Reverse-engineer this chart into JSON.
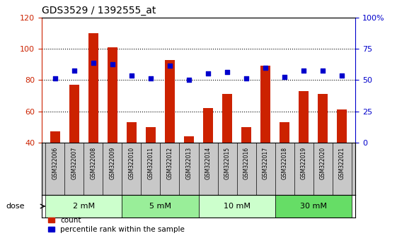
{
  "title": "GDS3529 / 1392555_at",
  "samples": [
    "GSM322006",
    "GSM322007",
    "GSM322008",
    "GSM322009",
    "GSM322010",
    "GSM322011",
    "GSM322012",
    "GSM322013",
    "GSM322014",
    "GSM322015",
    "GSM322016",
    "GSM322017",
    "GSM322018",
    "GSM322019",
    "GSM322020",
    "GSM322021"
  ],
  "counts": [
    47,
    77,
    110,
    101,
    53,
    50,
    93,
    44,
    62,
    71,
    50,
    89,
    53,
    73,
    71,
    61
  ],
  "percentile_left": [
    81,
    86,
    91,
    90,
    83,
    81,
    89,
    80,
    84,
    85,
    81,
    88,
    82,
    86,
    86,
    83
  ],
  "bar_color": "#cc2200",
  "dot_color": "#0000cc",
  "ylim_left": [
    40,
    120
  ],
  "ylim_right": [
    0,
    100
  ],
  "yticks_left": [
    40,
    60,
    80,
    100,
    120
  ],
  "yticks_right": [
    0,
    25,
    50,
    75,
    100
  ],
  "yticklabels_right": [
    "0",
    "25",
    "50",
    "75",
    "100%"
  ],
  "dose_groups": [
    {
      "label": "2 mM",
      "start": 0,
      "end": 3,
      "color": "#ccffcc"
    },
    {
      "label": "5 mM",
      "start": 4,
      "end": 7,
      "color": "#99ee99"
    },
    {
      "label": "10 mM",
      "start": 8,
      "end": 11,
      "color": "#ccffcc"
    },
    {
      "label": "30 mM",
      "start": 12,
      "end": 15,
      "color": "#66dd66"
    }
  ],
  "dose_label": "dose",
  "legend_count_label": "count",
  "legend_percentile_label": "percentile rank within the sample",
  "background_color": "#ffffff",
  "tick_area_bg": "#c8c8c8"
}
